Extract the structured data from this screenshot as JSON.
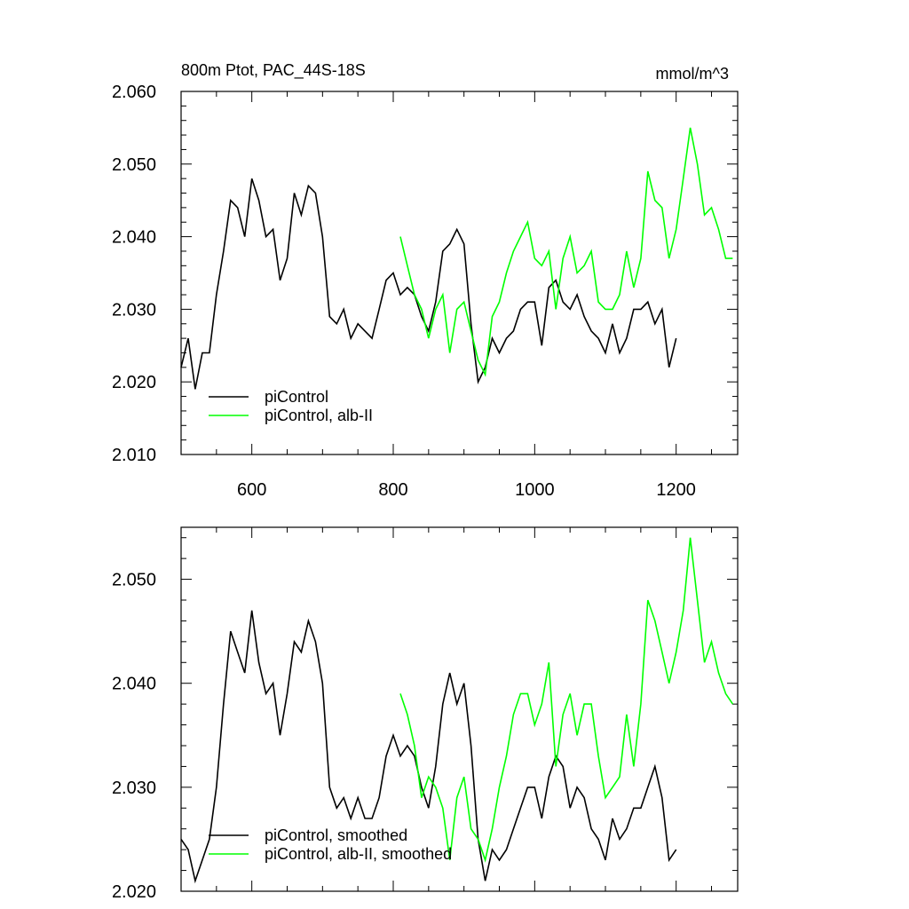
{
  "chart_data": [
    {
      "type": "line",
      "title": "800m Ptot, PAC_44S-18S",
      "units": "mmol/m^3",
      "xlim": [
        500,
        1287
      ],
      "xticks": [
        600,
        800,
        1000,
        1200
      ],
      "ylim": [
        2.01,
        2.06
      ],
      "yticks": [
        {
          "value": 2.01,
          "label": "2.010"
        },
        {
          "value": 2.02,
          "label": "2.020"
        },
        {
          "value": 2.03,
          "label": "2.030"
        },
        {
          "value": 2.04,
          "label": "2.040"
        },
        {
          "value": 2.05,
          "label": "2.050"
        },
        {
          "value": 2.06,
          "label": "2.060"
        }
      ],
      "legend": "lower left",
      "series": [
        {
          "name": "piControl",
          "color": "#000000",
          "x": [
            500,
            510,
            520,
            530,
            540,
            550,
            560,
            570,
            580,
            590,
            600,
            610,
            620,
            630,
            640,
            650,
            660,
            670,
            680,
            690,
            700,
            710,
            720,
            730,
            740,
            750,
            760,
            770,
            780,
            790,
            800,
            810,
            820,
            830,
            840,
            850,
            860,
            870,
            880,
            890,
            900,
            910,
            920,
            930,
            940,
            950,
            960,
            970,
            980,
            990,
            1000,
            1010,
            1020,
            1030,
            1040,
            1050,
            1060,
            1070,
            1080,
            1090,
            1100,
            1110,
            1120,
            1130,
            1140,
            1150,
            1160,
            1170,
            1180,
            1190,
            1200
          ],
          "values": [
            2.022,
            2.026,
            2.019,
            2.024,
            2.024,
            2.032,
            2.038,
            2.045,
            2.044,
            2.04,
            2.048,
            2.045,
            2.04,
            2.041,
            2.034,
            2.037,
            2.046,
            2.043,
            2.047,
            2.046,
            2.04,
            2.029,
            2.028,
            2.03,
            2.026,
            2.028,
            2.027,
            2.026,
            2.03,
            2.034,
            2.035,
            2.032,
            2.033,
            2.032,
            2.029,
            2.027,
            2.031,
            2.038,
            2.039,
            2.041,
            2.039,
            2.028,
            2.02,
            2.022,
            2.026,
            2.024,
            2.026,
            2.027,
            2.03,
            2.031,
            2.031,
            2.025,
            2.033,
            2.034,
            2.031,
            2.03,
            2.032,
            2.029,
            2.027,
            2.026,
            2.024,
            2.028,
            2.024,
            2.026,
            2.03,
            2.03,
            2.031,
            2.028,
            2.03,
            2.022,
            2.026
          ]
        },
        {
          "name": "piControl, alb-II",
          "color": "#00ff00",
          "x": [
            810,
            820,
            830,
            840,
            850,
            860,
            870,
            880,
            890,
            900,
            910,
            920,
            930,
            940,
            950,
            960,
            970,
            980,
            990,
            1000,
            1010,
            1020,
            1030,
            1040,
            1050,
            1060,
            1070,
            1080,
            1090,
            1100,
            1110,
            1120,
            1130,
            1140,
            1150,
            1160,
            1170,
            1180,
            1190,
            1200,
            1210,
            1220,
            1230,
            1240,
            1250,
            1260,
            1270,
            1280
          ],
          "values": [
            2.04,
            2.036,
            2.032,
            2.03,
            2.026,
            2.03,
            2.032,
            2.024,
            2.03,
            2.031,
            2.027,
            2.023,
            2.021,
            2.029,
            2.031,
            2.035,
            2.038,
            2.04,
            2.042,
            2.037,
            2.036,
            2.038,
            2.03,
            2.037,
            2.04,
            2.035,
            2.036,
            2.038,
            2.031,
            2.03,
            2.03,
            2.032,
            2.038,
            2.033,
            2.037,
            2.049,
            2.045,
            2.044,
            2.037,
            2.041,
            2.048,
            2.055,
            2.05,
            2.043,
            2.044,
            2.041,
            2.037,
            2.037
          ]
        }
      ]
    },
    {
      "type": "line",
      "xlim": [
        500,
        1287
      ],
      "ylim": [
        2.02,
        2.055
      ],
      "yticks": [
        {
          "value": 2.02,
          "label": "2.020"
        },
        {
          "value": 2.03,
          "label": "2.030"
        },
        {
          "value": 2.04,
          "label": "2.040"
        },
        {
          "value": 2.05,
          "label": "2.050"
        }
      ],
      "legend": "lower left",
      "series": [
        {
          "name": "piControl, smoothed",
          "color": "#000000",
          "x": [
            500,
            510,
            520,
            530,
            540,
            550,
            560,
            570,
            580,
            590,
            600,
            610,
            620,
            630,
            640,
            650,
            660,
            670,
            680,
            690,
            700,
            710,
            720,
            730,
            740,
            750,
            760,
            770,
            780,
            790,
            800,
            810,
            820,
            830,
            840,
            850,
            860,
            870,
            880,
            890,
            900,
            910,
            920,
            930,
            940,
            950,
            960,
            970,
            980,
            990,
            1000,
            1010,
            1020,
            1030,
            1040,
            1050,
            1060,
            1070,
            1080,
            1090,
            1100,
            1110,
            1120,
            1130,
            1140,
            1150,
            1160,
            1170,
            1180,
            1190,
            1200
          ],
          "values": [
            2.025,
            2.024,
            2.021,
            2.023,
            2.025,
            2.03,
            2.038,
            2.045,
            2.043,
            2.041,
            2.047,
            2.042,
            2.039,
            2.04,
            2.035,
            2.039,
            2.044,
            2.043,
            2.046,
            2.044,
            2.04,
            2.03,
            2.028,
            2.029,
            2.027,
            2.029,
            2.027,
            2.027,
            2.029,
            2.033,
            2.035,
            2.033,
            2.034,
            2.033,
            2.03,
            2.028,
            2.032,
            2.038,
            2.041,
            2.038,
            2.04,
            2.034,
            2.025,
            2.021,
            2.024,
            2.023,
            2.024,
            2.026,
            2.028,
            2.03,
            2.03,
            2.027,
            2.031,
            2.033,
            2.032,
            2.028,
            2.03,
            2.029,
            2.026,
            2.025,
            2.023,
            2.027,
            2.025,
            2.026,
            2.028,
            2.028,
            2.03,
            2.032,
            2.029,
            2.023,
            2.024
          ]
        },
        {
          "name": "piControl, alb-II, smoothed",
          "color": "#00ff00",
          "x": [
            810,
            820,
            830,
            840,
            850,
            860,
            870,
            880,
            890,
            900,
            910,
            920,
            930,
            940,
            950,
            960,
            970,
            980,
            990,
            1000,
            1010,
            1020,
            1030,
            1040,
            1050,
            1060,
            1070,
            1080,
            1090,
            1100,
            1110,
            1120,
            1130,
            1140,
            1150,
            1160,
            1170,
            1180,
            1190,
            1200,
            1210,
            1220,
            1230,
            1240,
            1250,
            1260,
            1270,
            1280
          ],
          "values": [
            2.039,
            2.037,
            2.034,
            2.029,
            2.031,
            2.03,
            2.028,
            2.023,
            2.029,
            2.031,
            2.026,
            2.025,
            2.023,
            2.026,
            2.03,
            2.033,
            2.037,
            2.039,
            2.039,
            2.036,
            2.038,
            2.042,
            2.032,
            2.037,
            2.039,
            2.035,
            2.038,
            2.038,
            2.033,
            2.029,
            2.03,
            2.031,
            2.037,
            2.032,
            2.038,
            2.048,
            2.046,
            2.043,
            2.04,
            2.043,
            2.047,
            2.054,
            2.048,
            2.042,
            2.044,
            2.041,
            2.039,
            2.038
          ]
        }
      ]
    }
  ]
}
